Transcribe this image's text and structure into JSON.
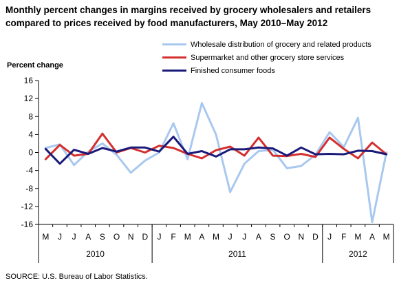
{
  "chart_data": {
    "type": "line",
    "title": "Monthly percent changes in margins received by grocery wholesalers and retailers compared to prices received by food manufacturers, May 2010–May 2012",
    "ylabel": "Percent change",
    "ylim": [
      -16,
      16
    ],
    "yticks": [
      16,
      12,
      8,
      4,
      0,
      -4,
      -8,
      -12,
      -16
    ],
    "categories": [
      "M",
      "J",
      "J",
      "A",
      "S",
      "O",
      "N",
      "D",
      "J",
      "F",
      "M",
      "A",
      "M",
      "J",
      "J",
      "A",
      "S",
      "O",
      "N",
      "D",
      "J",
      "F",
      "M",
      "A",
      "M"
    ],
    "year_groups": [
      {
        "label": "2010",
        "count": 8
      },
      {
        "label": "2011",
        "count": 12
      },
      {
        "label": "2012",
        "count": 5
      }
    ],
    "series": [
      {
        "name": "Wholesale distribution of grocery and related products",
        "color": "#a9c8ef",
        "values": [
          1.0,
          1.8,
          -2.8,
          0.2,
          2.0,
          -0.5,
          -4.5,
          -1.8,
          0.0,
          6.5,
          -1.5,
          11.0,
          4.0,
          -8.8,
          -2.5,
          0.3,
          0.6,
          -3.5,
          -3.0,
          -0.5,
          4.5,
          1.2,
          7.7,
          -15.5,
          0.0
        ]
      },
      {
        "name": "Supermarket and other grocery store services",
        "color": "#d42f2f",
        "values": [
          -1.5,
          1.7,
          -0.7,
          -0.3,
          4.2,
          0.0,
          1.0,
          0.0,
          1.5,
          1.0,
          -0.3,
          -1.3,
          0.5,
          1.3,
          -0.7,
          3.3,
          -0.7,
          -0.8,
          -0.3,
          -1.0,
          3.3,
          0.8,
          -1.3,
          2.2,
          -0.4
        ]
      },
      {
        "name": "Finished consumer foods",
        "color": "#1a1a7a",
        "values": [
          0.8,
          -2.5,
          0.6,
          -0.3,
          1.0,
          0.2,
          1.1,
          1.1,
          0.2,
          3.5,
          -0.3,
          0.3,
          -0.9,
          0.7,
          0.7,
          1.1,
          0.9,
          -0.7,
          1.1,
          -0.4,
          -0.3,
          -0.4,
          0.4,
          0.3,
          -0.4
        ]
      }
    ]
  },
  "source": "SOURCE: U.S. Bureau of Labor Statistics."
}
